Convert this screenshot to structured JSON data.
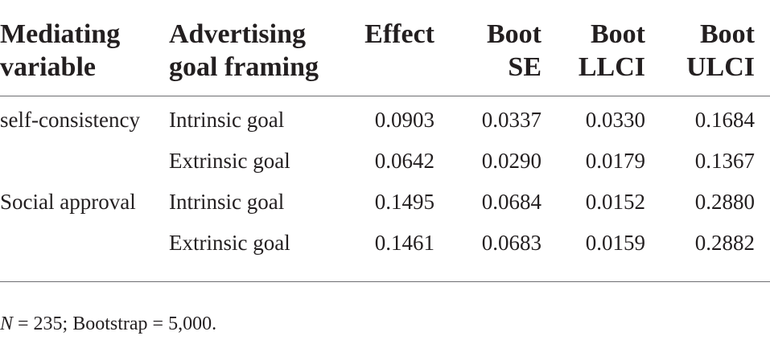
{
  "table": {
    "headers": [
      [
        "Mediating",
        "variable"
      ],
      [
        "Advertising",
        "goal framing"
      ],
      [
        "Effect"
      ],
      [
        "Boot",
        "SE"
      ],
      [
        "Boot",
        "LLCI"
      ],
      [
        "Boot",
        "ULCI"
      ]
    ],
    "rows": [
      {
        "mediator": "self-consistency",
        "framing": "Intrinsic goal",
        "effect": "0.0903",
        "se": "0.0337",
        "llci": "0.0330",
        "ulci": "0.1684"
      },
      {
        "mediator": "",
        "framing": "Extrinsic goal",
        "effect": "0.0642",
        "se": "0.0290",
        "llci": "0.0179",
        "ulci": "0.1367"
      },
      {
        "mediator": "Social approval",
        "framing": "Intrinsic goal",
        "effect": "0.1495",
        "se": "0.0684",
        "llci": "0.0152",
        "ulci": "0.2880"
      },
      {
        "mediator": "",
        "framing": "Extrinsic goal",
        "effect": "0.1461",
        "se": "0.0683",
        "llci": "0.0159",
        "ulci": "0.2882"
      }
    ]
  },
  "footnote": {
    "n_symbol": "N",
    "rest": " = 235; Bootstrap = 5,000."
  }
}
